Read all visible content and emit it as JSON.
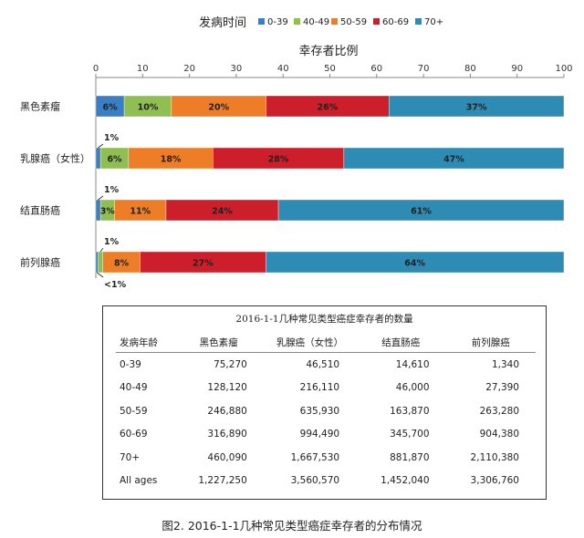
{
  "chart_data": {
    "type": "bar",
    "orientation": "horizontal-stacked",
    "axis_title": "幸存者比例",
    "legend_title": "发病时间",
    "xlim": [
      0,
      100
    ],
    "x_ticks": [
      "0",
      "10",
      "20",
      "30",
      "40",
      "50",
      "60",
      "70",
      "80",
      "90",
      "100"
    ],
    "categories": [
      "黑色素瘤",
      "乳腺癌（女性）",
      "结直肠癌",
      "前列腺癌"
    ],
    "series": [
      {
        "name": "0-39",
        "color": "#3a7fc4",
        "values": [
          6,
          1,
          1,
          0.5
        ],
        "labels": [
          "6%",
          "1%",
          "1%",
          "<1%"
        ]
      },
      {
        "name": "40-49",
        "color": "#8fbe53",
        "values": [
          10,
          6,
          3,
          1
        ],
        "labels": [
          "10%",
          "6%",
          "3%",
          "1%"
        ]
      },
      {
        "name": "50-59",
        "color": "#ee7d27",
        "values": [
          20,
          18,
          11,
          8
        ],
        "labels": [
          "20%",
          "18%",
          "11%",
          "8%"
        ]
      },
      {
        "name": "60-69",
        "color": "#cc1f2b",
        "values": [
          26,
          28,
          24,
          27
        ],
        "labels": [
          "26%",
          "28%",
          "24%",
          "27%"
        ]
      },
      {
        "name": "70+",
        "color": "#2e8bb3",
        "values": [
          37,
          47,
          61,
          64
        ],
        "labels": [
          "37%",
          "47%",
          "61%",
          "64%"
        ]
      }
    ],
    "legend_placement": "top",
    "grid": false
  },
  "table": {
    "title": "2016-1-1几种常见类型癌症幸存者的数量",
    "headers": [
      "发病年龄",
      "黑色素瘤",
      "乳腺癌（女性）",
      "结直肠癌",
      "前列腺癌"
    ],
    "rows": [
      [
        "0-39",
        "75,270",
        "46,510",
        "14,610",
        "1,340"
      ],
      [
        "40-49",
        "128,120",
        "216,110",
        "46,000",
        "27,390"
      ],
      [
        "50-59",
        "246,880",
        "635,930",
        "163,870",
        "263,280"
      ],
      [
        "60-69",
        "316,890",
        "994,490",
        "345,700",
        "904,380"
      ],
      [
        "70+",
        "460,090",
        "1,667,530",
        "881,870",
        "2,110,380"
      ],
      [
        "All ages",
        "1,227,250",
        "3,560,570",
        "1,452,040",
        "3,306,760"
      ]
    ]
  },
  "caption": "图2. 2016-1-1几种常见类型癌症幸存者的分布情况"
}
